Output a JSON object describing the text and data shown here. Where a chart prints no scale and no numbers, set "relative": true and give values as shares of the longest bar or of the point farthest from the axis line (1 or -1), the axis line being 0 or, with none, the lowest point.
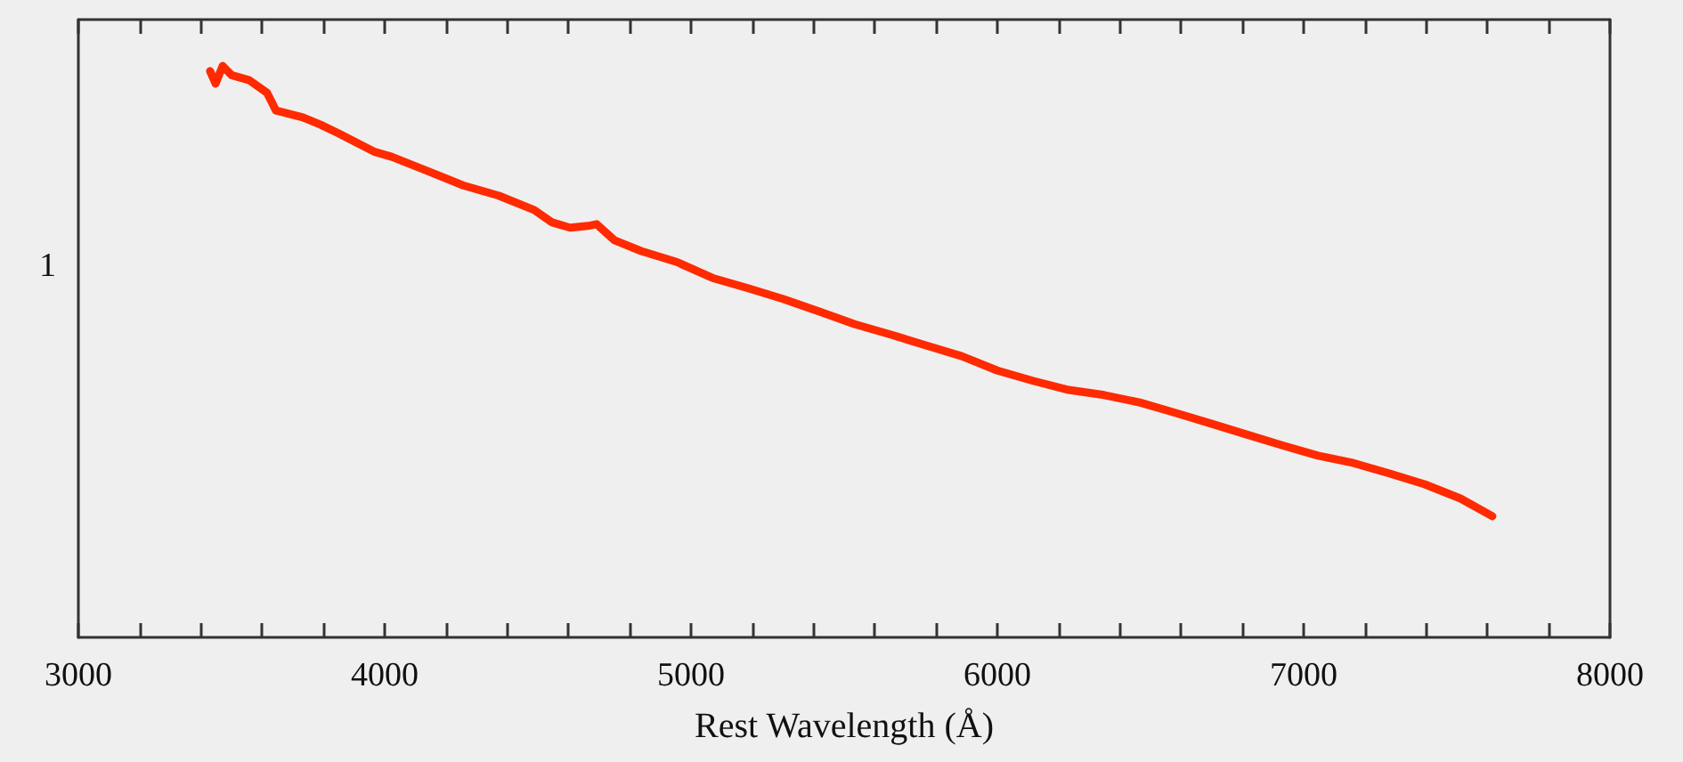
{
  "chart_data": {
    "type": "line",
    "xlabel": "Rest Wavelength (Å)",
    "annotations": [
      "1"
    ],
    "x": [
      3430,
      3448,
      3471,
      3500,
      3558,
      3616,
      3645,
      3733,
      3791,
      3849,
      3907,
      3965,
      4023,
      4140,
      4256,
      4372,
      4488,
      4547,
      4605,
      4663,
      4692,
      4750,
      4837,
      4953,
      5070,
      5186,
      5302,
      5419,
      5535,
      5651,
      5767,
      5884,
      6000,
      6116,
      6233,
      6349,
      6465,
      6581,
      6698,
      6814,
      6930,
      7047,
      7163,
      7279,
      7395,
      7512,
      7616
    ],
    "series": [
      {
        "color": "#ff2a00",
        "values": [
          0.991,
          0.969,
          1,
          0.984,
          0.975,
          0.953,
          0.922,
          0.91,
          0.897,
          0.882,
          0.866,
          0.85,
          0.841,
          0.816,
          0.791,
          0.773,
          0.748,
          0.726,
          0.717,
          0.72,
          0.723,
          0.695,
          0.676,
          0.657,
          0.629,
          0.611,
          0.592,
          0.57,
          0.548,
          0.53,
          0.511,
          0.492,
          0.467,
          0.449,
          0.433,
          0.424,
          0.411,
          0.393,
          0.374,
          0.355,
          0.336,
          0.318,
          0.305,
          0.287,
          0.268,
          0.243,
          0.212
        ]
      }
    ],
    "relative": true,
    "xlim": [
      3000,
      8000
    ],
    "xticks": [
      3000,
      {
        "value": 3200,
        "label": null
      },
      {
        "value": 3400,
        "label": null
      },
      {
        "value": 3600,
        "label": null
      },
      {
        "value": 3800,
        "label": null
      },
      4000,
      {
        "value": 4200,
        "label": null
      },
      {
        "value": 4400,
        "label": null
      },
      {
        "value": 4600,
        "label": null
      },
      {
        "value": 4800,
        "label": null
      },
      5000,
      {
        "value": 5200,
        "label": null
      },
      {
        "value": 5400,
        "label": null
      },
      {
        "value": 5600,
        "label": null
      },
      {
        "value": 5800,
        "label": null
      },
      6000,
      {
        "value": 6200,
        "label": null
      },
      {
        "value": 6400,
        "label": null
      },
      {
        "value": 6600,
        "label": null
      },
      {
        "value": 6800,
        "label": null
      },
      7000,
      {
        "value": 7200,
        "label": null
      },
      {
        "value": 7400,
        "label": null
      },
      {
        "value": 7600,
        "label": null
      },
      {
        "value": 7800,
        "label": null
      },
      8000
    ],
    "grid": false,
    "marker": "none",
    "line_style": "solid"
  }
}
